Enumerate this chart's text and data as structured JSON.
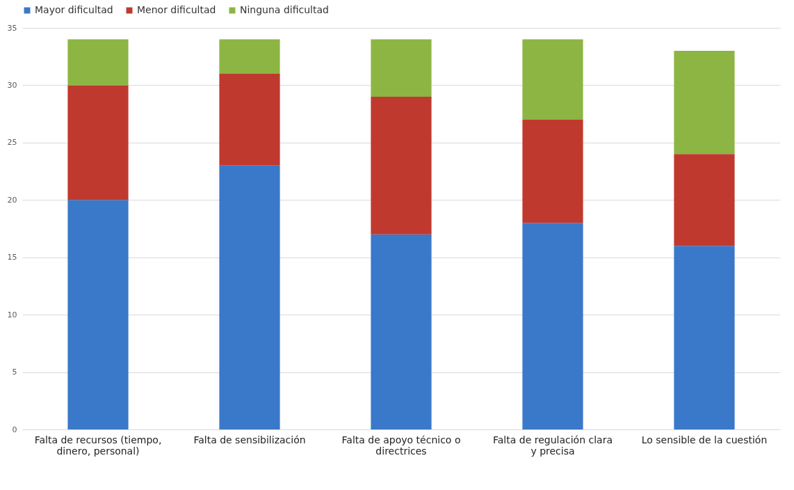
{
  "chart_data": {
    "type": "bar",
    "stacked": true,
    "categories": [
      "Falta de recursos (tiempo, dinero, personal)",
      "Falta de sensibilización",
      "Falta de apoyo técnico o directrices",
      "Falta de regulación clara y precisa",
      "Lo sensible de la cuestión"
    ],
    "series": [
      {
        "name": "Mayor dificultad",
        "color": "#3a78c9",
        "values": [
          20,
          23,
          17,
          18,
          16
        ]
      },
      {
        "name": "Menor dificultad",
        "color": "#c0392f",
        "values": [
          10,
          8,
          12,
          9,
          8
        ]
      },
      {
        "name": "Ninguna dificultad",
        "color": "#8db543",
        "values": [
          4,
          3,
          5,
          7,
          9
        ]
      }
    ],
    "ylim": [
      0,
      35
    ],
    "yticks": [
      0,
      5,
      10,
      15,
      20,
      25,
      30,
      35
    ],
    "grid": "y",
    "legend": "top"
  }
}
